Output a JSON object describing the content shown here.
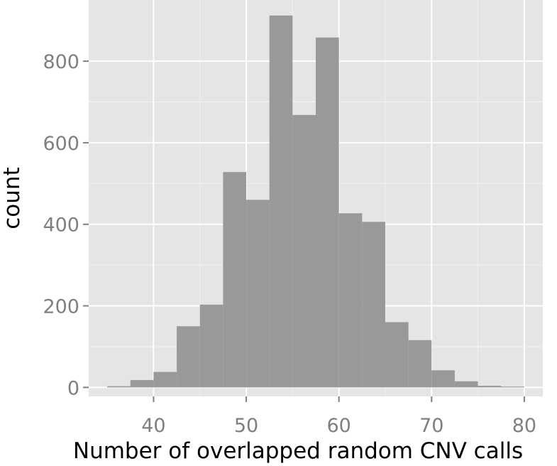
{
  "chart_data": {
    "type": "bar",
    "subtype": "histogram",
    "title": "",
    "xlabel": "Number of overlapped random CNV calls",
    "ylabel": "count",
    "bin_width": 2.5,
    "bins": [
      {
        "x0": 35.0,
        "x1": 37.5,
        "count": 3
      },
      {
        "x0": 37.5,
        "x1": 40.0,
        "count": 18
      },
      {
        "x0": 40.0,
        "x1": 42.5,
        "count": 38
      },
      {
        "x0": 42.5,
        "x1": 45.0,
        "count": 150
      },
      {
        "x0": 45.0,
        "x1": 47.5,
        "count": 203
      },
      {
        "x0": 47.5,
        "x1": 50.0,
        "count": 528
      },
      {
        "x0": 50.0,
        "x1": 52.5,
        "count": 460
      },
      {
        "x0": 52.5,
        "x1": 55.0,
        "count": 912
      },
      {
        "x0": 55.0,
        "x1": 57.5,
        "count": 668
      },
      {
        "x0": 57.5,
        "x1": 60.0,
        "count": 858
      },
      {
        "x0": 60.0,
        "x1": 62.5,
        "count": 427
      },
      {
        "x0": 62.5,
        "x1": 65.0,
        "count": 406
      },
      {
        "x0": 65.0,
        "x1": 67.5,
        "count": 160
      },
      {
        "x0": 67.5,
        "x1": 70.0,
        "count": 116
      },
      {
        "x0": 70.0,
        "x1": 72.5,
        "count": 42
      },
      {
        "x0": 72.5,
        "x1": 75.0,
        "count": 15
      },
      {
        "x0": 75.0,
        "x1": 77.5,
        "count": 4
      },
      {
        "x0": 77.5,
        "x1": 80.0,
        "count": 2
      }
    ],
    "xlim": [
      33,
      82
    ],
    "ylim": [
      -22,
      950
    ],
    "xticks": [
      40,
      50,
      60,
      70,
      80
    ],
    "yticks": [
      0,
      200,
      400,
      600,
      800
    ],
    "xtick_labels": [
      "40",
      "50",
      "60",
      "70",
      "80"
    ],
    "ytick_labels": [
      "0",
      "200",
      "400",
      "600",
      "800"
    ],
    "grid": true,
    "legend": "none",
    "colors": {
      "panel_background": "#e5e5e5",
      "grid_major": "#ffffff",
      "grid_minor": "#f2f2f2",
      "bar_fill": "#999999",
      "tick_label": "#7f7f7f"
    }
  }
}
